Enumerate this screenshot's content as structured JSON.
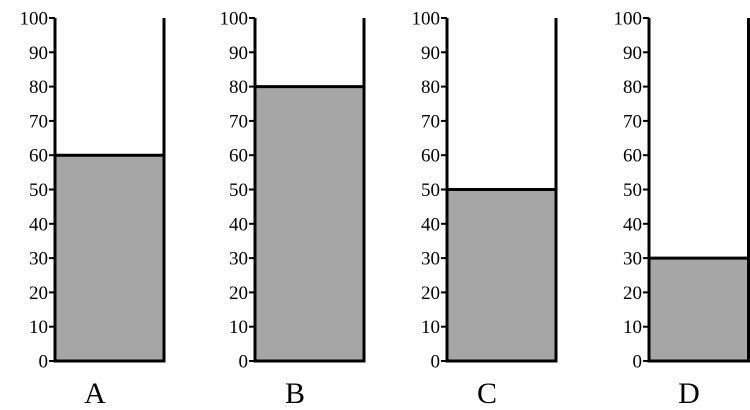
{
  "chart_data": {
    "type": "bar",
    "title": "",
    "xlabel": "",
    "ylabel": "",
    "ylim": [
      0,
      100
    ],
    "yticks": [
      0,
      10,
      20,
      30,
      40,
      50,
      60,
      70,
      80,
      90,
      100
    ],
    "categories": [
      "A",
      "B",
      "C",
      "D"
    ],
    "values": [
      60,
      80,
      50,
      30
    ],
    "grid": false,
    "legend": "none",
    "colors": {
      "fill": "#a6a6a6",
      "stroke": "#000000",
      "background": "#ffffff"
    }
  }
}
